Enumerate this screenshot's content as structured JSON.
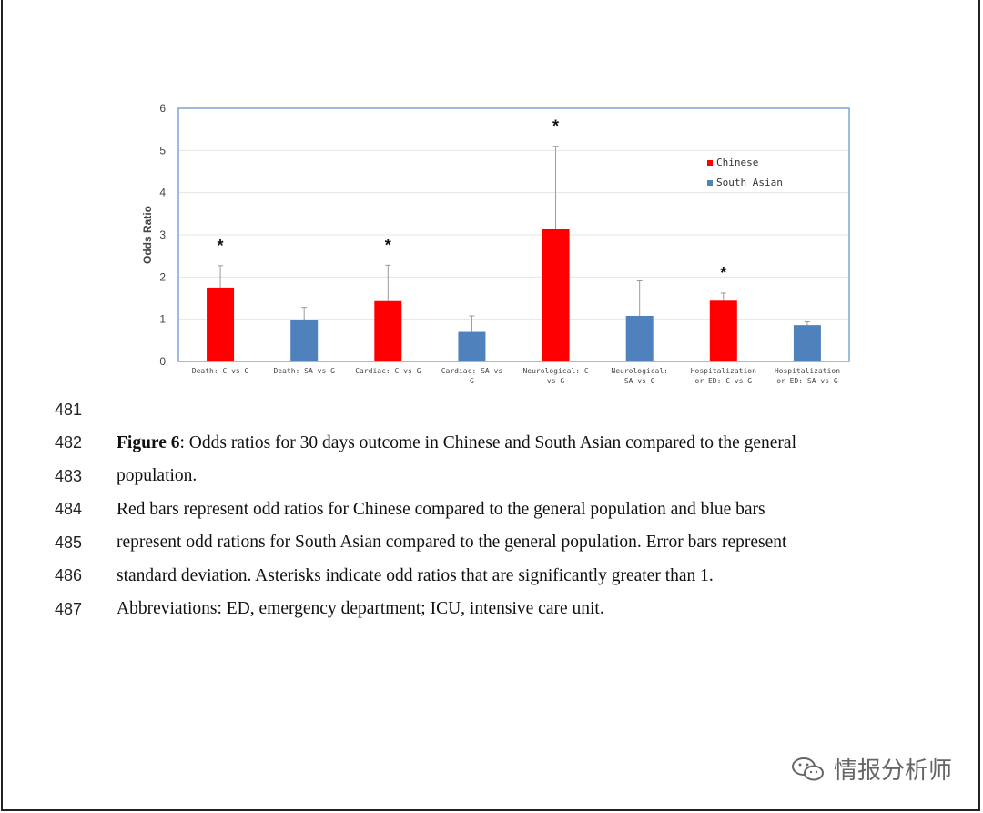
{
  "chart_data": {
    "type": "bar",
    "ylabel": "Odds Ratio",
    "ylim": [
      0,
      6
    ],
    "yticks": [
      "0",
      "1",
      "2",
      "3",
      "4",
      "5",
      "6"
    ],
    "categories": [
      [
        "Death: C vs G"
      ],
      [
        "Death: SA vs G"
      ],
      [
        "Cardiac: C vs G"
      ],
      [
        "Cardiac: SA vs",
        "G"
      ],
      [
        "Neurological: C",
        "vs G"
      ],
      [
        "Neurological:",
        "SA vs G"
      ],
      [
        "Hospitalization",
        "or ED: C vs G"
      ],
      [
        "Hospitalization",
        "or ED: SA vs G"
      ]
    ],
    "values": [
      1.75,
      0.98,
      1.43,
      0.7,
      3.15,
      1.08,
      1.44,
      0.86
    ],
    "error": [
      0.52,
      0.3,
      0.85,
      0.38,
      1.95,
      0.83,
      0.18,
      0.08
    ],
    "series_of_bar": [
      "Chinese",
      "South Asian",
      "Chinese",
      "South Asian",
      "Chinese",
      "South Asian",
      "Chinese",
      "South Asian"
    ],
    "significant": [
      true,
      false,
      true,
      false,
      true,
      false,
      true,
      false
    ],
    "asterisk": "*",
    "legend": [
      {
        "name": "Chinese",
        "color": "#ff0000"
      },
      {
        "name": "South Asian",
        "color": "#4f81bd"
      }
    ],
    "legend_position": "top-right",
    "grid": true
  },
  "caption": {
    "lines": [
      {
        "num": "481",
        "bold": "",
        "text": ""
      },
      {
        "num": "482",
        "bold": "Figure 6",
        "text": ": Odds ratios for 30 days outcome in Chinese and South Asian compared to the general"
      },
      {
        "num": "483",
        "bold": "",
        "text": "population."
      },
      {
        "num": "484",
        "bold": "",
        "text": "Red bars represent odd ratios for Chinese compared to the general population and blue bars"
      },
      {
        "num": "485",
        "bold": "",
        "text": "represent odd rations for South Asian compared to the general population. Error bars represent"
      },
      {
        "num": "486",
        "bold": "",
        "text": "standard deviation. Asterisks indicate odd ratios that are significantly greater than 1."
      },
      {
        "num": "487",
        "bold": "",
        "text": "Abbreviations: ED, emergency department; ICU, intensive care unit."
      }
    ]
  },
  "watermark": {
    "text": "情报分析师",
    "icon": "wechat-icon"
  }
}
